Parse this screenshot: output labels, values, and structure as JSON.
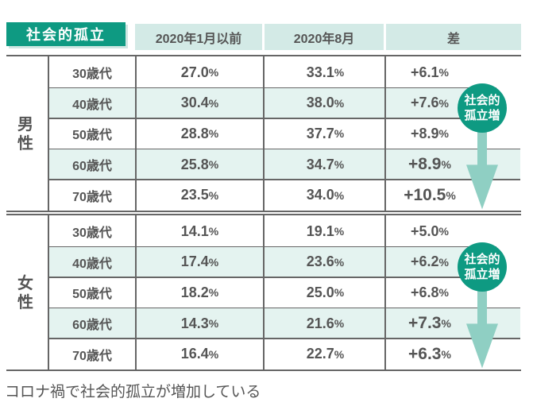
{
  "header": {
    "title": "社会的孤立",
    "columns": [
      "2020年1月以前",
      "2020年8月",
      "差"
    ]
  },
  "groups": [
    {
      "label": "男性",
      "badge": "社会的孤立増",
      "rows": [
        {
          "age": "30歳代",
          "before": "27.0",
          "after": "33.1",
          "diff": "+6.1"
        },
        {
          "age": "40歳代",
          "before": "30.4",
          "after": "38.0",
          "diff": "+7.6"
        },
        {
          "age": "50歳代",
          "before": "28.8",
          "after": "37.7",
          "diff": "+8.9"
        },
        {
          "age": "60歳代",
          "before": "25.8",
          "after": "34.7",
          "diff": "+8.9"
        },
        {
          "age": "70歳代",
          "before": "23.5",
          "after": "34.0",
          "diff": "+10.5"
        }
      ]
    },
    {
      "label": "女性",
      "badge": "社会的孤立増",
      "rows": [
        {
          "age": "30歳代",
          "before": "14.1",
          "after": "19.1",
          "diff": "+5.0"
        },
        {
          "age": "40歳代",
          "before": "17.4",
          "after": "23.6",
          "diff": "+6.2"
        },
        {
          "age": "50歳代",
          "before": "18.2",
          "after": "25.0",
          "diff": "+6.8"
        },
        {
          "age": "60歳代",
          "before": "14.3",
          "after": "21.6",
          "diff": "+7.3"
        },
        {
          "age": "70歳代",
          "before": "16.4",
          "after": "22.7",
          "diff": "+6.3"
        }
      ]
    }
  ],
  "unit": "%",
  "caption": "コロナ禍で社会的孤立が増加している",
  "colors": {
    "accent": "#0e9a82",
    "header_bg": "#d3eae6",
    "alt_row": "#e4f3f0",
    "arrow": "#8fcfc3"
  }
}
